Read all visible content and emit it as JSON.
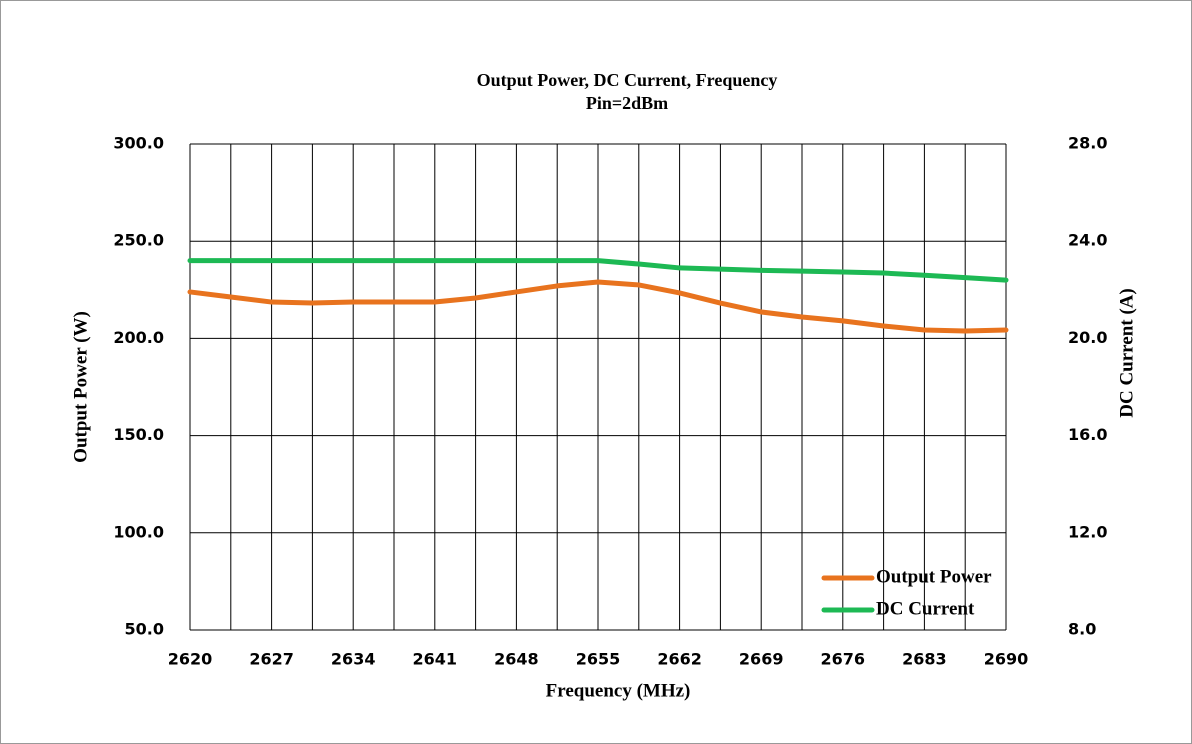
{
  "chart_data": {
    "type": "line",
    "title": "Output Power, DC  Current,  Frequency",
    "subtitle": "Pin=2dBm",
    "x_label": "Frequency (MHz)",
    "y_label": "Output Power (W)",
    "y2_label": "DC Current (A)",
    "x": [
      2620,
      2623.5,
      2627,
      2630.5,
      2634,
      2637.5,
      2641,
      2644.5,
      2648,
      2651.5,
      2655,
      2658.5,
      2662,
      2665.5,
      2669,
      2672.5,
      2676,
      2679.5,
      2683,
      2686.5,
      2690
    ],
    "series": [
      {
        "name": "Output Power",
        "color": "#e8731e",
        "values": [
          223.9,
          221.3,
          218.7,
          218.2,
          218.7,
          218.7,
          218.7,
          220.8,
          223.9,
          227.0,
          229.0,
          227.5,
          223.4,
          218.2,
          213.6,
          211.0,
          209.0,
          206.4,
          204.3,
          203.8,
          204.3
        ]
      },
      {
        "name": "DC Current",
        "color": "#1db954",
        "axis": "y2",
        "values": [
          23.2,
          23.2,
          23.2,
          23.2,
          23.2,
          23.2,
          23.2,
          23.2,
          23.2,
          23.2,
          23.2,
          23.06,
          22.9,
          22.85,
          22.8,
          22.77,
          22.73,
          22.69,
          22.6,
          22.5,
          22.4
        ]
      }
    ],
    "xlim": [
      2620,
      2690
    ],
    "xticks": [
      2620,
      2627,
      2634,
      2641,
      2648,
      2655,
      2662,
      2669,
      2676,
      2683,
      2690
    ],
    "xgrid": [
      2620,
      2623.5,
      2627,
      2630.5,
      2634,
      2637.5,
      2641,
      2644.5,
      2648,
      2651.5,
      2655,
      2658.5,
      2662,
      2665.5,
      2669,
      2672.5,
      2676,
      2679.5,
      2683,
      2686.5,
      2690
    ],
    "ylim": [
      50,
      300
    ],
    "yticks": [
      {
        "value": 50,
        "label": "50.0"
      },
      {
        "value": 100,
        "label": "100.0"
      },
      {
        "value": 150,
        "label": "150.0"
      },
      {
        "value": 200,
        "label": "200.0"
      },
      {
        "value": 250,
        "label": "250.0"
      },
      {
        "value": 300,
        "label": "300.0"
      }
    ],
    "y2lim": [
      8,
      28
    ],
    "y2ticks": [
      {
        "value": 8,
        "label": "8.0"
      },
      {
        "value": 12,
        "label": "12.0"
      },
      {
        "value": 16,
        "label": "16.0"
      },
      {
        "value": 20,
        "label": "20.0"
      },
      {
        "value": 24,
        "label": "24.0"
      },
      {
        "value": 28,
        "label": "28.0"
      }
    ],
    "grid": true,
    "legend": "lower right"
  }
}
